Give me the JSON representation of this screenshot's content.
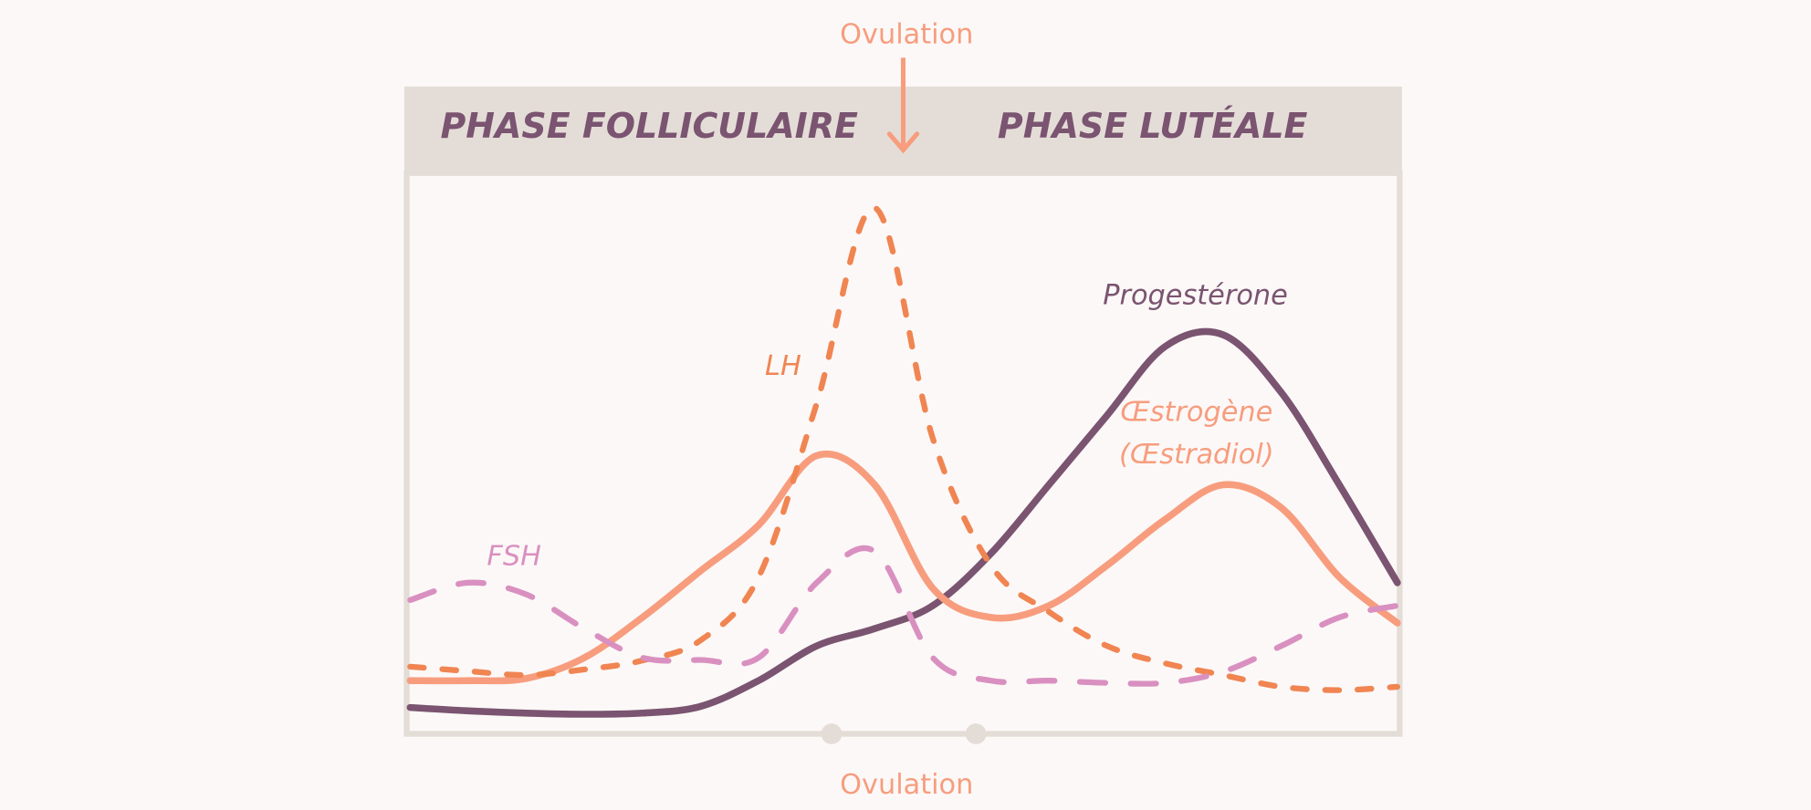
{
  "chart_data": {
    "type": "line",
    "annotations": {
      "ovulation_top": "Ovulation",
      "ovulation_bottom": "Ovulation",
      "phase_left": "PHASE FOLLICULAIRE",
      "phase_right": "PHASE LUTÉALE"
    },
    "categories": [
      null,
      null,
      null,
      null,
      null,
      null,
      null,
      null,
      null,
      null,
      null,
      null,
      null,
      null,
      null,
      null,
      null,
      null
    ],
    "ylim": [
      0,
      100
    ],
    "series": [
      {
        "name": "Progestérone",
        "color": "#7a5470",
        "dash": false,
        "values": [
          4.5,
          3.9,
          3.5,
          3.3,
          3.5,
          4.7,
          9.3,
          15.5,
          18.6,
          22.7,
          32,
          44.3,
          56.7,
          69,
          71.1,
          60.8,
          44.3,
          26.8
        ]
      },
      {
        "name": "Œstrogène (Œstradiol)",
        "label_lines": [
          "Œstrogène",
          "(Œstradiol)"
        ],
        "color": "#f79d7e",
        "dash": false,
        "values": [
          9.3,
          9.3,
          9.7,
          13.4,
          20.6,
          28.9,
          37.1,
          49.5,
          44.3,
          25.8,
          20.6,
          22.7,
          29.9,
          38.1,
          44.3,
          40.2,
          27.8,
          19.6
        ]
      },
      {
        "name": "LH",
        "color": "#f08552",
        "dash": true,
        "values": [
          11.8,
          11,
          10.3,
          11.3,
          12.9,
          16.5,
          27.8,
          58.8,
          93.8,
          52.6,
          29.9,
          21.6,
          15.5,
          12.4,
          10.3,
          8.2,
          7.6,
          8.2
        ]
      },
      {
        "name": "FSH",
        "color": "#d990c0",
        "dash": true,
        "values": [
          23.7,
          26.8,
          24.7,
          18.6,
          13.4,
          13,
          13.4,
          26.8,
          32.4,
          13.4,
          9.3,
          9.3,
          8.9,
          8.9,
          10.9,
          15.5,
          20.6,
          22.7
        ]
      }
    ]
  }
}
